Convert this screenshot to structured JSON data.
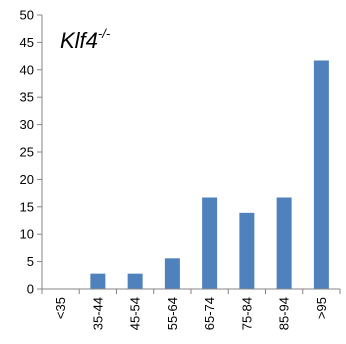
{
  "chart_data": {
    "type": "bar",
    "title_main": "Klf4",
    "title_sup": "-/-",
    "categories": [
      "<35",
      "35-44",
      "45-54",
      "55-64",
      "65-74",
      "75-84",
      "85-94",
      ">95"
    ],
    "values": [
      0,
      2.8,
      2.8,
      5.6,
      16.7,
      13.9,
      16.7,
      41.7
    ],
    "y_ticks": [
      "0",
      "5",
      "10",
      "15",
      "20",
      "25",
      "30",
      "35",
      "40",
      "45",
      "50"
    ],
    "ylim": [
      0,
      50
    ],
    "grid": false,
    "legend": "none",
    "bar_color": "#4f81bd",
    "axis_color": "#868686"
  }
}
